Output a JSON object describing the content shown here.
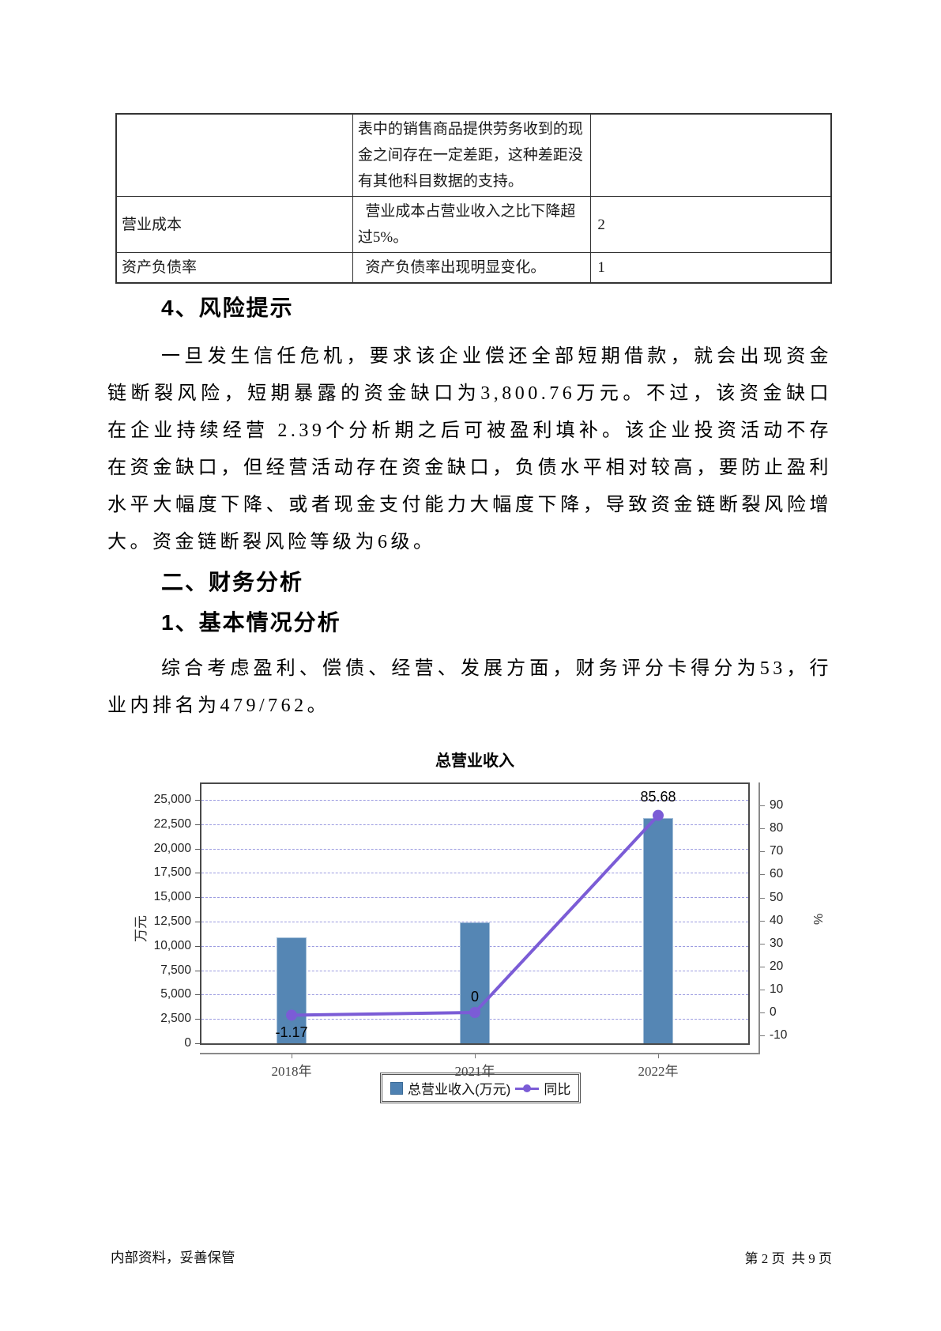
{
  "table": {
    "rows": [
      {
        "c1": "",
        "c2": "表中的销售商品提供劳务收到的现金之间存在一定差距，这种差距没有其他科目数据的支持。",
        "c3": ""
      },
      {
        "c1": "营业成本",
        "c2": "营业成本占营业收入之比下降超过5%。",
        "c3": "2"
      },
      {
        "c1": "资产负债率",
        "c2": "资产负债率出现明显变化。",
        "c3": "1"
      }
    ]
  },
  "sections": {
    "h_risk": "4、风险提示",
    "p_risk": "一旦发生信任危机，要求该企业偿还全部短期借款，就会出现资金链断裂风险，短期暴露的资金缺口为3,800.76万元。不过，该资金缺口在企业持续经营 2.39个分析期之后可被盈利填补。该企业投资活动不存在资金缺口，但经营活动存在资金缺口，负债水平相对较高，要防止盈利水平大幅度下降、或者现金支付能力大幅度下降，导致资金链断裂风险增大。资金链断裂风险等级为6级。",
    "h_fin": "二、财务分析",
    "h_basic": "1、基本情况分析",
    "p_basic": "综合考虑盈利、偿债、经营、发展方面，财务评分卡得分为53，行业内排名为479/762。"
  },
  "chart_data": {
    "type": "bar",
    "title": "总营业收入",
    "categories": [
      "2018年",
      "2021年",
      "2022年"
    ],
    "series": [
      {
        "name": "总营业收入(万元)",
        "type": "bar",
        "axis": "left",
        "values": [
          10900,
          12450,
          23100
        ],
        "color": "#5586b4"
      },
      {
        "name": "同比",
        "type": "line",
        "axis": "right",
        "values": [
          -1.17,
          0,
          85.68
        ],
        "labels": [
          "-1.17",
          "0",
          "85.68"
        ],
        "color": "#7b5cd6"
      }
    ],
    "left_axis": {
      "title": "万元",
      "min": 0,
      "max": 25000,
      "step": 2500,
      "tick_labels": [
        "0",
        "2,500",
        "5,000",
        "7,500",
        "10,000",
        "12,500",
        "15,000",
        "17,500",
        "20,000",
        "22,500",
        "25,000"
      ]
    },
    "right_axis": {
      "title": "%",
      "min": -10,
      "max": 90,
      "step": 10,
      "tick_labels": [
        "-10",
        "0",
        "10",
        "20",
        "30",
        "40",
        "50",
        "60",
        "70",
        "80",
        "90"
      ]
    },
    "grid": "dashed horizontal",
    "legend_position": "bottom",
    "colors": {
      "bar": "#5586b4",
      "line": "#7b5cd6",
      "grid": "#9a9ae0"
    }
  },
  "footer": {
    "left": "内部资料，妥善保管",
    "right": "第 2 页  共 9 页"
  }
}
